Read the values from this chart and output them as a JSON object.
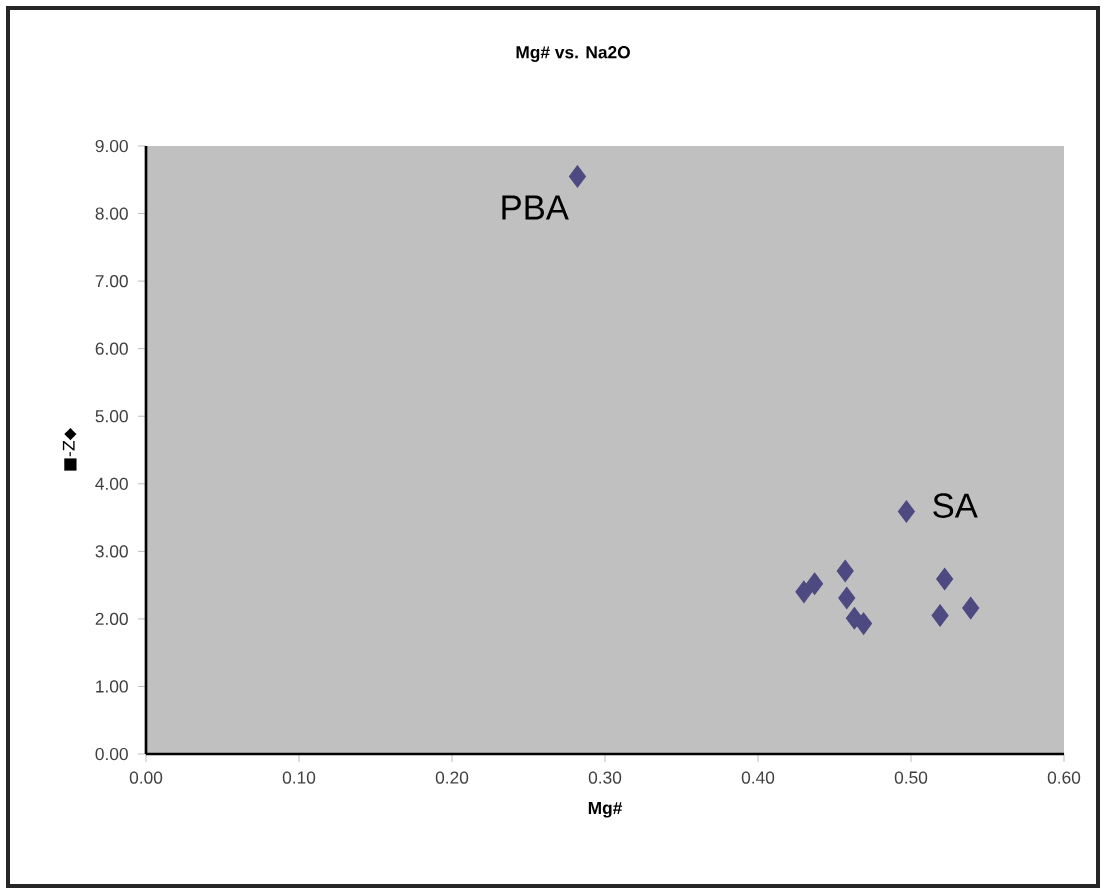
{
  "chart_data": {
    "type": "scatter",
    "title": "Mg# vs. Na2O",
    "xlabel": "Mg#",
    "ylabel": "■-Z◆",
    "x": [
      0.282,
      0.497,
      0.43,
      0.437,
      0.457,
      0.458,
      0.463,
      0.469,
      0.522,
      0.519,
      0.539
    ],
    "series": [
      {
        "color": "#4c4a80",
        "values": [
          8.55,
          3.59,
          2.4,
          2.52,
          2.71,
          2.31,
          2.01,
          1.93,
          2.59,
          2.05,
          2.16
        ]
      }
    ],
    "marker": "diamond",
    "grid": false,
    "xlim": [
      0,
      0.6
    ],
    "ylim": [
      0,
      9
    ],
    "xticks": [
      {
        "value": 0,
        "label": "0.00"
      },
      {
        "value": 0.1,
        "label": "0.10"
      },
      {
        "value": 0.2,
        "label": "0.20"
      },
      {
        "value": 0.3,
        "label": "0.30"
      },
      {
        "value": 0.4,
        "label": "0.40"
      },
      {
        "value": 0.5,
        "label": "0.50"
      },
      {
        "value": 0.6,
        "label": "0.60"
      }
    ],
    "yticks": [
      {
        "value": 0,
        "label": "0.00"
      },
      {
        "value": 1,
        "label": "1.00"
      },
      {
        "value": 2,
        "label": "2.00"
      },
      {
        "value": 3,
        "label": "3.00"
      },
      {
        "value": 4,
        "label": "4.00"
      },
      {
        "value": 5,
        "label": "5.00"
      },
      {
        "value": 6,
        "label": "6.00"
      },
      {
        "value": 7,
        "label": "7.00"
      },
      {
        "value": 8,
        "label": "8.00"
      },
      {
        "value": 9,
        "label": "9.00"
      }
    ],
    "annotations": [
      {
        "text": "PBA",
        "x": 0.282,
        "y": 8.55
      },
      {
        "text": "SA",
        "x": 0.497,
        "y": 3.59
      }
    ]
  }
}
